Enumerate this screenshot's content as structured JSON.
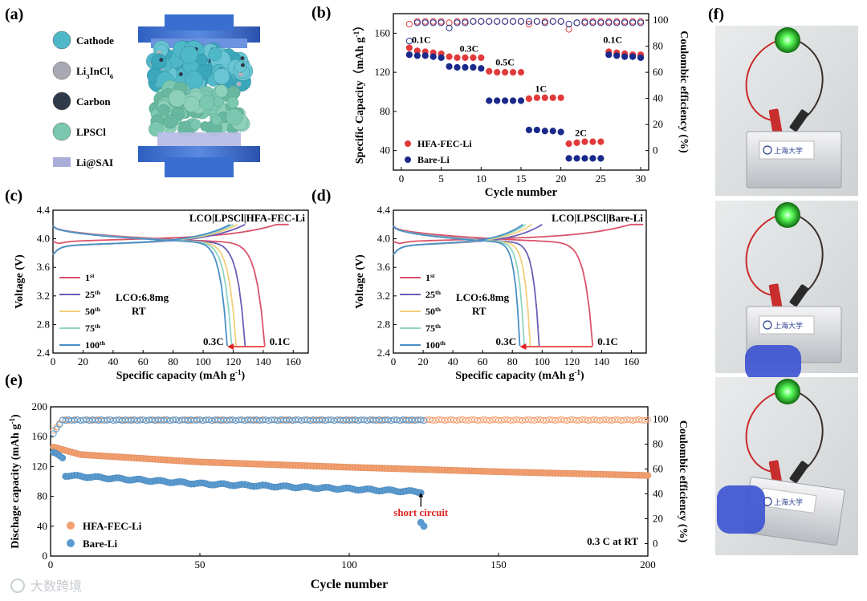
{
  "panel_labels": {
    "a": "(a)",
    "b": "(b)",
    "c": "(c)",
    "d": "(d)",
    "e": "(e)",
    "f": "(f)"
  },
  "panel_a": {
    "legend": [
      {
        "label": "Cathode",
        "color": "#4fb8c8"
      },
      {
        "label": "Li3InCl6",
        "color": "#a9a9b3"
      },
      {
        "label": "Carbon",
        "color": "#2f3b4a"
      },
      {
        "label": "LPSCl",
        "color": "#7cc7b0"
      },
      {
        "label": "Li@SAI",
        "color": "#a8aed8"
      }
    ],
    "legend_sub": "3",
    "legend_sub2": "6",
    "legend_li": "Li",
    "legend_incl": "InCl"
  },
  "chart_data": [
    {
      "id": "b",
      "type": "scatter",
      "xlabel": "Cycle number",
      "ylabel": "Specific Capacity（mAh g-1）",
      "ylabel_main": "Specific Capacity（mAh g",
      "ylabel_sup": "-1",
      "ylabel_end": "）",
      "y2label": "Coulombic efficiency (%)",
      "xlim": [
        -1,
        31
      ],
      "ylim": [
        20,
        180
      ],
      "y2lim": [
        -15,
        105
      ],
      "xticks": [
        0,
        5,
        10,
        15,
        20,
        25,
        30
      ],
      "yticks": [
        40,
        80,
        120,
        160
      ],
      "y2ticks": [
        0,
        20,
        40,
        60,
        80,
        100
      ],
      "rate_labels": [
        {
          "text": "0.1C",
          "x": 2.5,
          "y": 150
        },
        {
          "text": "0.3C",
          "x": 8.5,
          "y": 141
        },
        {
          "text": "0.5C",
          "x": 13.0,
          "y": 127
        },
        {
          "text": "1C",
          "x": 17.5,
          "y": 100
        },
        {
          "text": "2C",
          "x": 22.5,
          "y": 55
        },
        {
          "text": "0.1C",
          "x": 26.5,
          "y": 150
        }
      ],
      "series": [
        {
          "name": "HFA-FEC-Li",
          "color": "#e23a3a",
          "x": [
            1,
            2,
            3,
            4,
            5,
            6,
            7,
            8,
            9,
            10,
            11,
            12,
            13,
            14,
            15,
            16,
            17,
            18,
            19,
            20,
            21,
            22,
            23,
            24,
            25,
            26,
            27,
            28,
            29,
            30
          ],
          "values": [
            145,
            142,
            141,
            140,
            139,
            136,
            135,
            135,
            135,
            135,
            121,
            120,
            120,
            120,
            120,
            93,
            94,
            94,
            94,
            94,
            47,
            48,
            49,
            49,
            49,
            141,
            140,
            139,
            138,
            138
          ]
        },
        {
          "name": "Bare-Li",
          "color": "#1a2a8a",
          "x": [
            1,
            2,
            3,
            4,
            5,
            6,
            7,
            8,
            9,
            10,
            11,
            12,
            13,
            14,
            15,
            16,
            17,
            18,
            19,
            20,
            21,
            22,
            23,
            24,
            25,
            26,
            27,
            28,
            29,
            30
          ],
          "values": [
            138,
            137,
            137,
            136,
            135,
            126,
            125,
            125,
            125,
            124,
            91,
            91,
            91,
            91,
            91,
            61,
            61,
            60,
            60,
            59,
            32,
            32,
            32,
            32,
            32,
            138,
            137,
            136,
            136,
            135
          ]
        },
        {
          "name": "HFA-FEC-Li CE",
          "axis": "y2",
          "color": "#e23a3a",
          "hollow": true,
          "x": [
            1,
            2,
            3,
            4,
            5,
            6,
            7,
            8,
            9,
            10,
            11,
            12,
            13,
            14,
            15,
            16,
            17,
            18,
            19,
            20,
            21,
            22,
            23,
            24,
            25,
            26,
            27,
            28,
            29,
            30
          ],
          "values": [
            97,
            99,
            99,
            99,
            99,
            98,
            99,
            99,
            99,
            99,
            99,
            99,
            99,
            99,
            99,
            97,
            99,
            99,
            99,
            99,
            93,
            98,
            99,
            99,
            99,
            99,
            99,
            99,
            99,
            99
          ]
        },
        {
          "name": "Bare-Li CE",
          "axis": "y2",
          "color": "#1a2a8a",
          "hollow": true,
          "x": [
            1,
            2,
            3,
            4,
            5,
            6,
            7,
            8,
            9,
            10,
            11,
            12,
            13,
            14,
            15,
            16,
            17,
            18,
            19,
            20,
            21,
            22,
            23,
            24,
            25,
            26,
            27,
            28,
            29,
            30
          ],
          "values": [
            84,
            98,
            98,
            98,
            98,
            94,
            98,
            98,
            99,
            99,
            99,
            99,
            99,
            99,
            99,
            99,
            99,
            98,
            99,
            99,
            97,
            98,
            98,
            98,
            98,
            98,
            98,
            98,
            98,
            98
          ]
        }
      ],
      "legend": [
        "HFA-FEC-Li",
        "Bare-Li"
      ]
    },
    {
      "id": "c",
      "type": "line",
      "title": "LCO|LPSCl|HFA-FEC-Li",
      "xlabel": "Specific capacity (mAh g-1)",
      "ylabel": "Voltage (V)",
      "xlabel_main": "Specific capacity (mAh g",
      "xlabel_sup": "-1",
      "xlabel_end": ")",
      "xlim": [
        0,
        170
      ],
      "ylim": [
        2.4,
        4.4
      ],
      "xticks": [
        0,
        20,
        40,
        60,
        80,
        100,
        120,
        140,
        160
      ],
      "yticks": [
        2.4,
        2.8,
        3.2,
        3.6,
        4.0,
        4.4
      ],
      "annotations": {
        "mass": "LCO:6.8mg",
        "temp": "RT",
        "rate_low": "0.1C",
        "rate_high": "0.3C"
      },
      "series": [
        {
          "name": "1st",
          "num": "1",
          "sup": "st",
          "color": "#d9546a",
          "charge_end": 157,
          "discharge_end": 141
        },
        {
          "name": "25th",
          "num": "25",
          "sup": "th",
          "color": "#6a5fb8",
          "charge_end": 128,
          "discharge_end": 128
        },
        {
          "name": "50th",
          "num": "50",
          "sup": "th",
          "color": "#f2cf7c",
          "charge_end": 123,
          "discharge_end": 122
        },
        {
          "name": "75th",
          "num": "75",
          "sup": "th",
          "color": "#8fd4c2",
          "charge_end": 120,
          "discharge_end": 119
        },
        {
          "name": "100th",
          "num": "100",
          "sup": "th",
          "color": "#4a8fc6",
          "charge_end": 118,
          "discharge_end": 116
        }
      ]
    },
    {
      "id": "d",
      "type": "line",
      "title": "LCO|LPSCl|Bare-Li",
      "xlabel": "Specific capacity (mAh g-1)",
      "ylabel": "Voltage (V)",
      "xlabel_main": "Specific capacity (mAh g",
      "xlabel_sup": "-1",
      "xlabel_end": ")",
      "xlim": [
        0,
        170
      ],
      "ylim": [
        2.4,
        4.4
      ],
      "xticks": [
        0,
        20,
        40,
        60,
        80,
        100,
        120,
        140,
        160
      ],
      "yticks": [
        2.4,
        2.8,
        3.2,
        3.6,
        4.0,
        4.4
      ],
      "annotations": {
        "mass": "LCO:6.8mg",
        "temp": "RT",
        "rate_low": "0.1C",
        "rate_high": "0.3C"
      },
      "series": [
        {
          "name": "1st",
          "num": "1",
          "sup": "st",
          "color": "#d9546a",
          "charge_end": 168,
          "discharge_end": 134
        },
        {
          "name": "25th",
          "num": "25",
          "sup": "th",
          "color": "#6a5fb8",
          "charge_end": 100,
          "discharge_end": 98
        },
        {
          "name": "50th",
          "num": "50",
          "sup": "th",
          "color": "#f2cf7c",
          "charge_end": 93,
          "discharge_end": 92
        },
        {
          "name": "75th",
          "num": "75",
          "sup": "th",
          "color": "#8fd4c2",
          "charge_end": 89,
          "discharge_end": 88
        },
        {
          "name": "100th",
          "num": "100",
          "sup": "th",
          "color": "#4a8fc6",
          "charge_end": 87,
          "discharge_end": 85
        }
      ]
    },
    {
      "id": "e",
      "type": "scatter",
      "xlabel": "Cycle number",
      "ylabel": "Dischage capacity (mAh g-1)",
      "ylabel_main": "Dischage capacity (mAh g",
      "ylabel_sup": "-1",
      "ylabel_end": ")",
      "y2label": "Coulombic efficiency (%)",
      "xlim": [
        0,
        200
      ],
      "ylim": [
        0,
        200
      ],
      "y2lim": [
        -10,
        110
      ],
      "xticks": [
        0,
        50,
        100,
        150,
        200
      ],
      "yticks": [
        0,
        40,
        80,
        120,
        160,
        200
      ],
      "y2ticks": [
        0,
        20,
        40,
        60,
        80,
        100
      ],
      "annotation_short": "short circuit",
      "annotation_cond": "0.3 C at RT",
      "series": [
        {
          "name": "HFA-FEC-Li",
          "color": "#f2a070",
          "capacity": {
            "start": 146,
            "c10": 136,
            "c50": 126,
            "c100": 119,
            "c150": 113,
            "end": 108,
            "cycles": 200
          },
          "ce": {
            "start": 88,
            "steady": 99.4,
            "cycles": 200
          }
        },
        {
          "name": "Bare-Li",
          "color": "#5b9bd0",
          "capacity": {
            "start": 138,
            "c5": 108,
            "c50": 97,
            "c100": 90,
            "c124": 86,
            "short": [
              45,
              40
            ],
            "cycles": 124
          },
          "ce": {
            "start": 85,
            "steady": 99.3,
            "cycles": 125
          }
        }
      ],
      "legend": [
        "HFA-FEC-Li",
        "Bare-Li"
      ]
    }
  ],
  "panel_f": {
    "led_color": "#44ff44",
    "badge_text": "上海大学"
  },
  "watermark": "大数跨境"
}
